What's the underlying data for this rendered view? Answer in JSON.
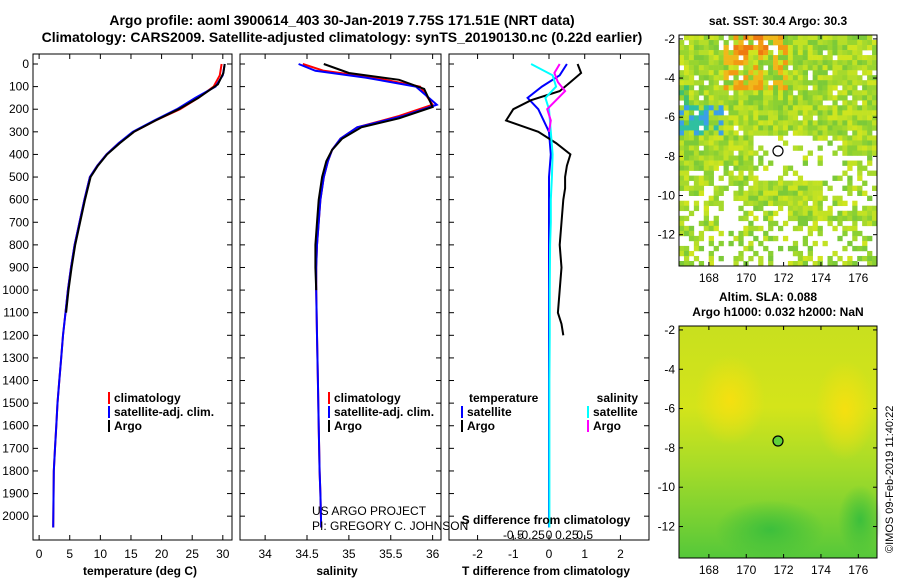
{
  "title_line1": "Argo profile: aoml 3900614_403 30-Jan-2019 7.75S 171.51E (NRT data)",
  "title_line2": "Climatology: CARS2009. Satellite-adjusted climatology: synTS_20190130.nc (0.22d earlier)",
  "credit_line1": "US ARGO PROJECT",
  "credit_line2": "PI: GREGORY C. JOHNSON",
  "timestamp": "©IMOS 09-Feb-2019 11:40:22",
  "colors": {
    "climatology": "#ff0000",
    "satellite": "#0000ff",
    "argo": "#000000",
    "argo_salinity_diff": "#ff00ff",
    "satellite_salinity_diff": "#00ffff"
  },
  "depth_ticks": [
    "0",
    "100",
    "200",
    "300",
    "400",
    "500",
    "600",
    "700",
    "800",
    "900",
    "1000",
    "1100",
    "1200",
    "1300",
    "1400",
    "1500",
    "1600",
    "1700",
    "1800",
    "1900",
    "2000"
  ],
  "temp_panel": {
    "xlabel": "temperature (deg C)",
    "xticks": [
      "0",
      "5",
      "10",
      "15",
      "20",
      "25",
      "30"
    ],
    "legend": [
      "climatology",
      "satellite-adj. clim.",
      "Argo"
    ]
  },
  "sal_panel": {
    "xlabel": "salinity",
    "xticks": [
      "34",
      "34.5",
      "35",
      "35.5",
      "36"
    ],
    "legend": [
      "climatology",
      "satellite-adj. clim.",
      "Argo"
    ]
  },
  "diff_panel": {
    "xlabel_bottom": "T difference from climatology",
    "xlabel_top": "S difference from climatology",
    "xticks_t": [
      "-2",
      "-1",
      "0",
      "1",
      "2"
    ],
    "xticks_s": [
      "-0.5",
      "-0.25",
      "0",
      "0.25",
      "0.5"
    ],
    "legend_left_title": "temperature",
    "legend_right_title": "salinity",
    "legend_items": [
      "satellite",
      "Argo"
    ]
  },
  "sst_map": {
    "title": "sat. SST: 30.4 Argo: 30.3",
    "xticks": [
      "168",
      "170",
      "172",
      "174",
      "176"
    ],
    "yticks": [
      "-2",
      "-4",
      "-6",
      "-8",
      "-10",
      "-12"
    ]
  },
  "sla_map": {
    "title_line1": "Altim. SLA: 0.088",
    "title_line2": "Argo h1000: 0.032 h2000: NaN",
    "xticks": [
      "168",
      "170",
      "172",
      "174",
      "176"
    ],
    "yticks": [
      "-2",
      "-4",
      "-6",
      "-8",
      "-10",
      "-12"
    ]
  },
  "chart_data": [
    {
      "type": "line",
      "panel": "temperature",
      "xlabel": "temperature (deg C)",
      "ylabel": "",
      "xlim": [
        -1,
        31.5
      ],
      "ylim": [
        2070,
        0
      ],
      "series": [
        {
          "name": "climatology",
          "x": [
            29.8,
            29.5,
            28.5,
            26,
            23,
            19,
            15.5,
            13,
            11,
            9.5,
            8.3,
            7.4,
            6.6,
            5.8,
            5.2,
            4.7,
            4.3,
            3.9,
            3.6,
            3.3,
            3.0,
            2.8,
            2.6,
            2.4,
            2.3
          ],
          "y": [
            0,
            50,
            100,
            150,
            200,
            250,
            300,
            350,
            400,
            450,
            500,
            600,
            700,
            800,
            900,
            1000,
            1100,
            1200,
            1300,
            1400,
            1500,
            1600,
            1700,
            1800,
            2050
          ]
        },
        {
          "name": "satellite-adj. clim.",
          "x": [
            30.3,
            30.0,
            28.8,
            25.5,
            22.5,
            18.8,
            15.3,
            13,
            11,
            9.5,
            8.3,
            7.4,
            6.6,
            5.8,
            5.2,
            4.7,
            4.3,
            3.9,
            3.6,
            3.3,
            3.0,
            2.8,
            2.6,
            2.4,
            2.3
          ],
          "y": [
            0,
            50,
            100,
            150,
            200,
            250,
            300,
            350,
            400,
            450,
            500,
            600,
            700,
            800,
            900,
            1000,
            1100,
            1200,
            1300,
            1400,
            1500,
            1600,
            1700,
            1800,
            2050
          ]
        },
        {
          "name": "Argo",
          "x": [
            30.3,
            30.1,
            29.2,
            26,
            22.8,
            19,
            15.5,
            13.2,
            11.1,
            9.6,
            8.4,
            7.5,
            6.7,
            5.9,
            5.3,
            4.8,
            4.4
          ],
          "y": [
            0,
            40,
            90,
            150,
            200,
            250,
            300,
            350,
            400,
            450,
            500,
            600,
            700,
            800,
            900,
            1000,
            1100
          ]
        }
      ]
    },
    {
      "type": "line",
      "panel": "salinity",
      "xlabel": "salinity",
      "ylabel": "",
      "xlim": [
        33.7,
        36.1
      ],
      "ylim": [
        2070,
        0
      ],
      "series": [
        {
          "name": "climatology",
          "x": [
            34.45,
            34.7,
            35.3,
            35.85,
            36.0,
            35.6,
            35.1,
            34.9,
            34.8,
            34.75,
            34.7,
            34.66,
            34.64,
            34.62,
            34.61,
            34.61,
            34.62,
            34.63,
            34.64,
            34.65,
            34.66,
            34.67
          ],
          "y": [
            0,
            30,
            60,
            100,
            180,
            230,
            280,
            330,
            380,
            430,
            500,
            600,
            700,
            800,
            900,
            1000,
            1200,
            1400,
            1600,
            1800,
            1900,
            2050
          ]
        },
        {
          "name": "satellite-adj. clim.",
          "x": [
            34.4,
            34.6,
            35.2,
            35.8,
            36.05,
            35.65,
            35.1,
            34.9,
            34.8,
            34.75,
            34.7,
            34.66,
            34.64,
            34.62,
            34.61,
            34.61,
            34.62,
            34.63,
            34.64,
            34.65,
            34.66,
            34.67
          ],
          "y": [
            0,
            30,
            60,
            100,
            180,
            230,
            280,
            330,
            380,
            430,
            500,
            600,
            700,
            800,
            900,
            1000,
            1200,
            1400,
            1600,
            1800,
            1900,
            2050
          ]
        },
        {
          "name": "Argo",
          "x": [
            34.7,
            35.0,
            35.6,
            35.9,
            36.0,
            35.6,
            35.15,
            34.92,
            34.8,
            34.73,
            34.68,
            34.64,
            34.62,
            34.6,
            34.6,
            34.61
          ],
          "y": [
            0,
            40,
            70,
            110,
            190,
            240,
            280,
            330,
            380,
            430,
            500,
            600,
            700,
            800,
            900,
            1000
          ]
        }
      ]
    },
    {
      "type": "line",
      "panel": "difference",
      "xlabel": "T difference from climatology",
      "ylabel": "",
      "xlim": [
        -2.8,
        2.8
      ],
      "ylim": [
        2070,
        0
      ],
      "series": [
        {
          "name": "temperature satellite",
          "x": [
            0.5,
            0.3,
            -0.2,
            -0.6,
            -0.3,
            0,
            0.05,
            0,
            0,
            0,
            0,
            0,
            0,
            0,
            0,
            0,
            0
          ],
          "y": [
            0,
            50,
            100,
            150,
            200,
            300,
            400,
            500,
            600,
            700,
            800,
            1000,
            1200,
            1400,
            1600,
            1800,
            2050
          ]
        },
        {
          "name": "temperature Argo",
          "x": [
            0.8,
            0.9,
            0.6,
            0.3,
            -0.5,
            -1.0,
            -1.2,
            -0.3,
            0.2,
            0.6,
            0.5,
            0.45,
            0.45,
            0.4,
            0.35,
            0.3,
            0.35,
            0.3,
            0.25,
            0.35,
            0.4
          ],
          "y": [
            0,
            40,
            80,
            120,
            160,
            200,
            250,
            300,
            350,
            400,
            450,
            500,
            550,
            600,
            700,
            800,
            900,
            1000,
            1100,
            1150,
            1200
          ]
        },
        {
          "name": "salinity satellite",
          "x": [
            -0.5,
            0.1,
            0.2,
            -0.1,
            0,
            0.05,
            0.1,
            0.08,
            0.05,
            0.05,
            0.03,
            0.02,
            0.02,
            0.01,
            0.01,
            0.01,
            0.01
          ],
          "y": [
            0,
            50,
            100,
            150,
            200,
            300,
            400,
            500,
            600,
            700,
            800,
            1000,
            1200,
            1400,
            1600,
            1800,
            2050
          ]
        },
        {
          "name": "salinity Argo",
          "x": [
            0.3,
            0.15,
            0.25,
            0.45,
            0.2,
            -0.05,
            0.05,
            0
          ],
          "y": [
            0,
            40,
            80,
            120,
            160,
            200,
            250,
            300
          ]
        }
      ]
    }
  ]
}
